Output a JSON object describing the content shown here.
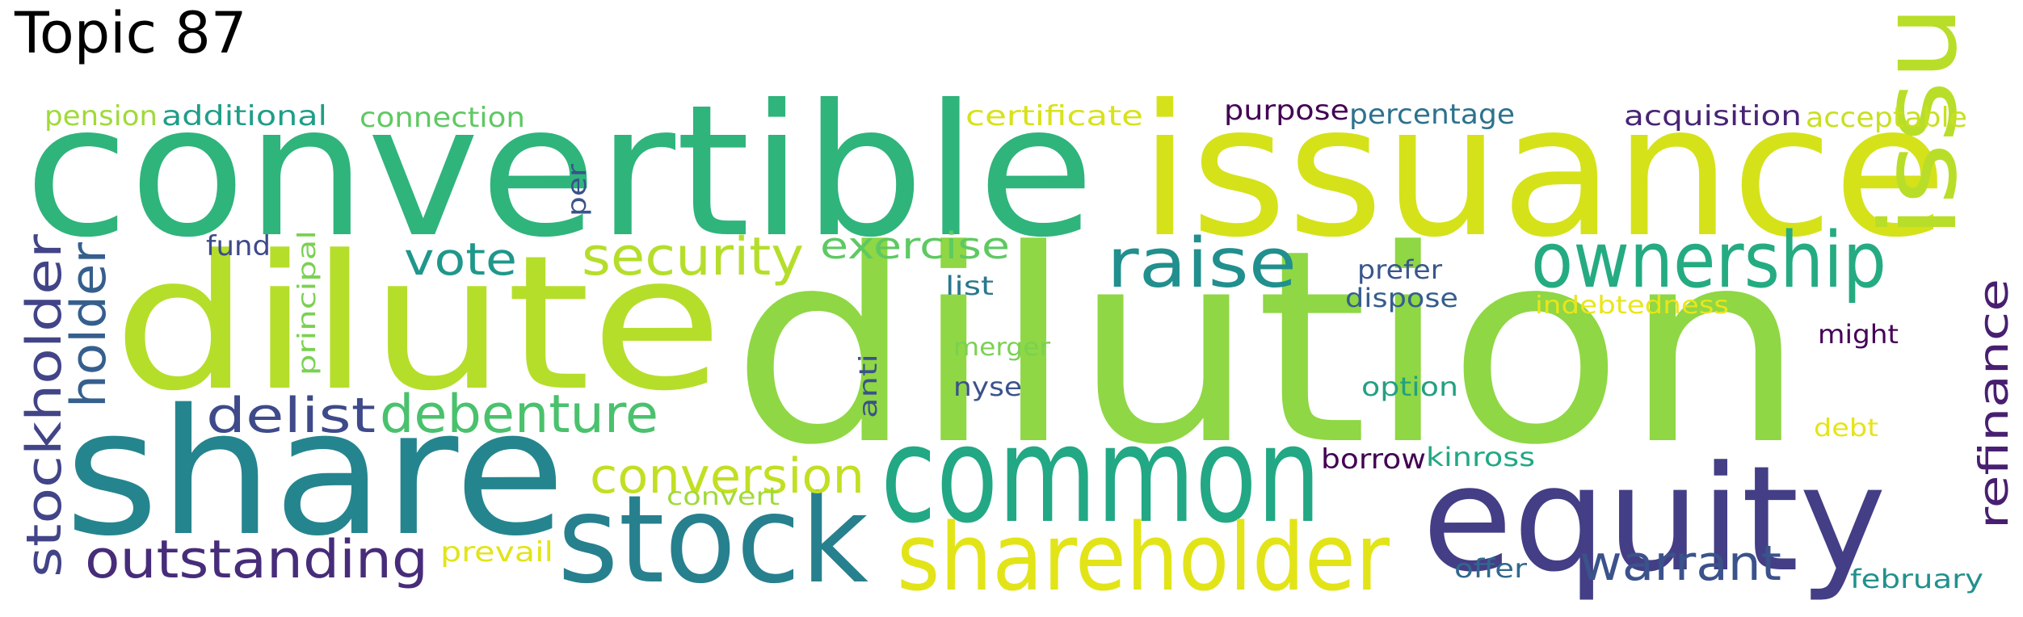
{
  "title": "Topic 87",
  "words": [
    {
      "text": "convertible",
      "color": "#2fb47c"
    },
    {
      "text": "issuance",
      "color": "#d5e21a"
    },
    {
      "text": "dilution",
      "color": "#8fd744"
    },
    {
      "text": "dilute",
      "color": "#b5de2b"
    },
    {
      "text": "share",
      "color": "#25858e"
    },
    {
      "text": "common",
      "color": "#22a884"
    },
    {
      "text": "stock",
      "color": "#27808e"
    },
    {
      "text": "equity",
      "color": "#433e85"
    },
    {
      "text": "shareholder",
      "color": "#e2e418"
    },
    {
      "text": "issue",
      "color": "#b8de29"
    },
    {
      "text": "ownership",
      "color": "#25ab82"
    },
    {
      "text": "raise",
      "color": "#218f8d"
    },
    {
      "text": "security",
      "color": "#b5de2b"
    },
    {
      "text": "debenture",
      "color": "#4ac16d"
    },
    {
      "text": "conversion",
      "color": "#c2df23"
    },
    {
      "text": "outstanding",
      "color": "#472c7a"
    },
    {
      "text": "warrant",
      "color": "#3b528b"
    },
    {
      "text": "stockholder",
      "color": "#414487"
    },
    {
      "text": "holder",
      "color": "#355f8d"
    },
    {
      "text": "delist",
      "color": "#3e4a89"
    },
    {
      "text": "vote",
      "color": "#1f978b"
    },
    {
      "text": "exercise",
      "color": "#5ec962"
    },
    {
      "text": "refinance",
      "color": "#481f70"
    },
    {
      "text": "additional",
      "color": "#1f9e89"
    },
    {
      "text": "pension",
      "color": "#a0da39"
    },
    {
      "text": "connection",
      "color": "#5ec962"
    },
    {
      "text": "certificate",
      "color": "#d8e219"
    },
    {
      "text": "purpose",
      "color": "#440154"
    },
    {
      "text": "percentage",
      "color": "#2c728e"
    },
    {
      "text": "acquisition",
      "color": "#482475"
    },
    {
      "text": "acceptable",
      "color": "#c8e020"
    },
    {
      "text": "per",
      "color": "#3b528b"
    },
    {
      "text": "fund",
      "color": "#3e4989"
    },
    {
      "text": "principal",
      "color": "#7ad151"
    },
    {
      "text": "list",
      "color": "#2a788e"
    },
    {
      "text": "prefer",
      "color": "#39568c"
    },
    {
      "text": "dispose",
      "color": "#355e8d"
    },
    {
      "text": "indebtedness",
      "color": "#eae51a"
    },
    {
      "text": "might",
      "color": "#440154"
    },
    {
      "text": "merger",
      "color": "#7ad151"
    },
    {
      "text": "nyse",
      "color": "#3b528b"
    },
    {
      "text": "anti",
      "color": "#3b528b"
    },
    {
      "text": "option",
      "color": "#23a083"
    },
    {
      "text": "debt",
      "color": "#e5e419"
    },
    {
      "text": "borrow",
      "color": "#440154"
    },
    {
      "text": "kinross",
      "color": "#22a884"
    },
    {
      "text": "convert",
      "color": "#a0da39"
    },
    {
      "text": "prevail",
      "color": "#e2e418"
    },
    {
      "text": "offer",
      "color": "#31688e"
    },
    {
      "text": "february",
      "color": "#21918c"
    }
  ]
}
